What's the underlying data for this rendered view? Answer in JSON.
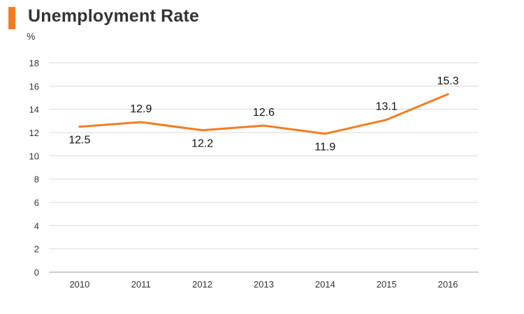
{
  "header": {
    "title": "Unemployment Rate",
    "unit": "%"
  },
  "colors": {
    "accent": "#f47c20",
    "line": "#f47c20",
    "grid": "#d9d9d9",
    "axis": "#999999"
  },
  "chart_data": {
    "type": "line",
    "title": "Unemployment Rate",
    "ylabel": "%",
    "xlabel": "",
    "categories": [
      "2010",
      "2011",
      "2012",
      "2013",
      "2014",
      "2015",
      "2016"
    ],
    "values": [
      12.5,
      12.9,
      12.2,
      12.6,
      11.9,
      13.1,
      15.3
    ],
    "data_labels": [
      "12.5",
      "12.9",
      "12.2",
      "12.6",
      "11.9",
      "13.1",
      "15.3"
    ],
    "label_positions": [
      "below",
      "above",
      "below",
      "above",
      "below",
      "above",
      "above"
    ],
    "ylim": [
      0,
      18
    ],
    "yticks": [
      "0",
      "2",
      "4",
      "6",
      "8",
      "10",
      "12",
      "14",
      "16",
      "18"
    ],
    "grid": true,
    "legend": "none"
  }
}
